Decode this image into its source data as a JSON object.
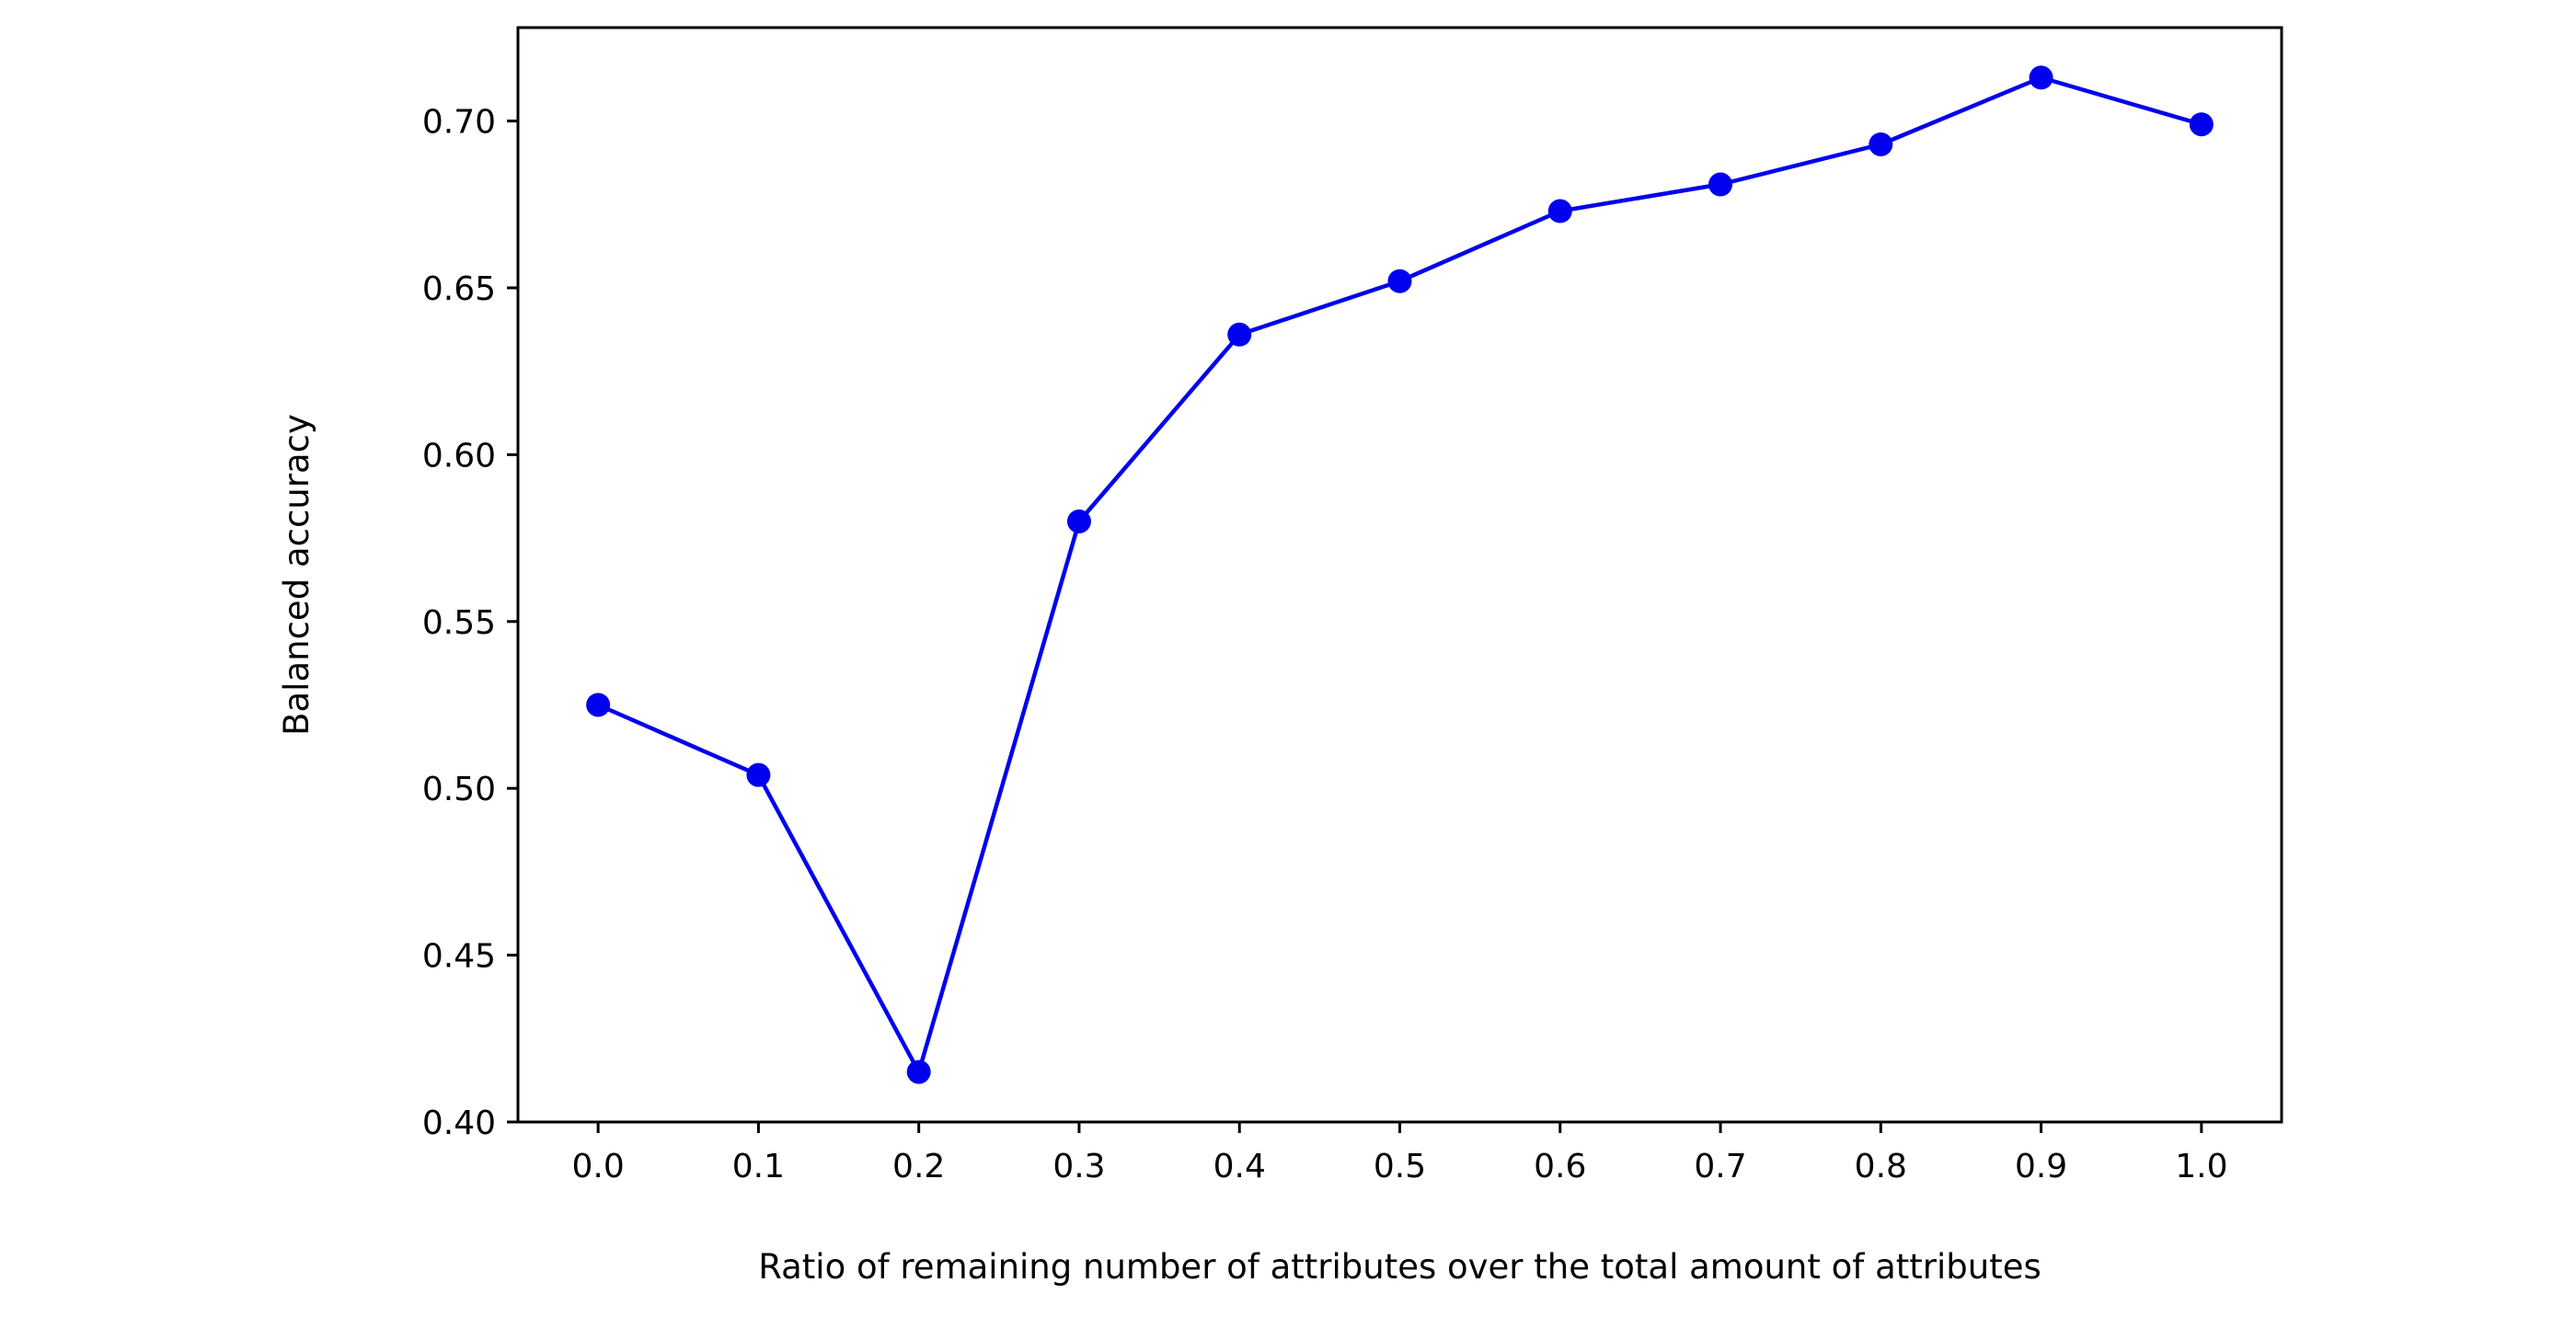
{
  "chart_data": {
    "type": "line",
    "title": "",
    "xlabel": "Ratio of remaining number of attributes over the total amount of attributes",
    "ylabel": "Balanced accuracy",
    "x": [
      0.0,
      0.1,
      0.2,
      0.3,
      0.4,
      0.5,
      0.6,
      0.7,
      0.8,
      0.9,
      1.0
    ],
    "series": [
      {
        "name": "Balanced accuracy",
        "color": "#0000ee",
        "marker": "circle",
        "values": [
          0.525,
          0.504,
          0.415,
          0.58,
          0.636,
          0.652,
          0.673,
          0.681,
          0.693,
          0.713,
          0.699
        ]
      }
    ],
    "xlim": [
      -0.05,
      1.05
    ],
    "ylim": [
      0.4,
      0.728
    ],
    "x_ticks": [
      0.0,
      0.1,
      0.2,
      0.3,
      0.4,
      0.5,
      0.6,
      0.7,
      0.8,
      0.9,
      1.0
    ],
    "x_tick_labels": [
      "0.0",
      "0.1",
      "0.2",
      "0.3",
      "0.4",
      "0.5",
      "0.6",
      "0.7",
      "0.8",
      "0.9",
      "1.0"
    ],
    "y_ticks": [
      0.4,
      0.45,
      0.5,
      0.55,
      0.6,
      0.65,
      0.7
    ],
    "y_tick_labels": [
      "0.40",
      "0.45",
      "0.50",
      "0.55",
      "0.60",
      "0.65",
      "0.70"
    ],
    "grid": false,
    "legend": "none"
  }
}
